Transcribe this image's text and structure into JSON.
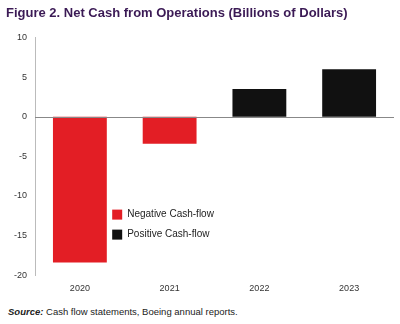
{
  "chart_data": {
    "type": "bar",
    "title": "Figure 2. Net Cash from Operations (Billions of Dollars)",
    "categories": [
      "2020",
      "2021",
      "2022",
      "2023"
    ],
    "series": [
      {
        "name": "Negative Cash-flow",
        "color": "#e31e25",
        "values": [
          -18.4,
          -3.4,
          null,
          null
        ]
      },
      {
        "name": "Positive Cash-flow",
        "color": "#111111",
        "values": [
          null,
          null,
          3.5,
          6.0
        ]
      }
    ],
    "ylim": [
      -20,
      10
    ],
    "yticks": [
      -20,
      -15,
      -10,
      -5,
      0,
      5,
      10
    ],
    "grid": false,
    "legend": "center",
    "source": {
      "label": "Source:",
      "text": "Cash flow statements, Boeing annual reports."
    }
  }
}
